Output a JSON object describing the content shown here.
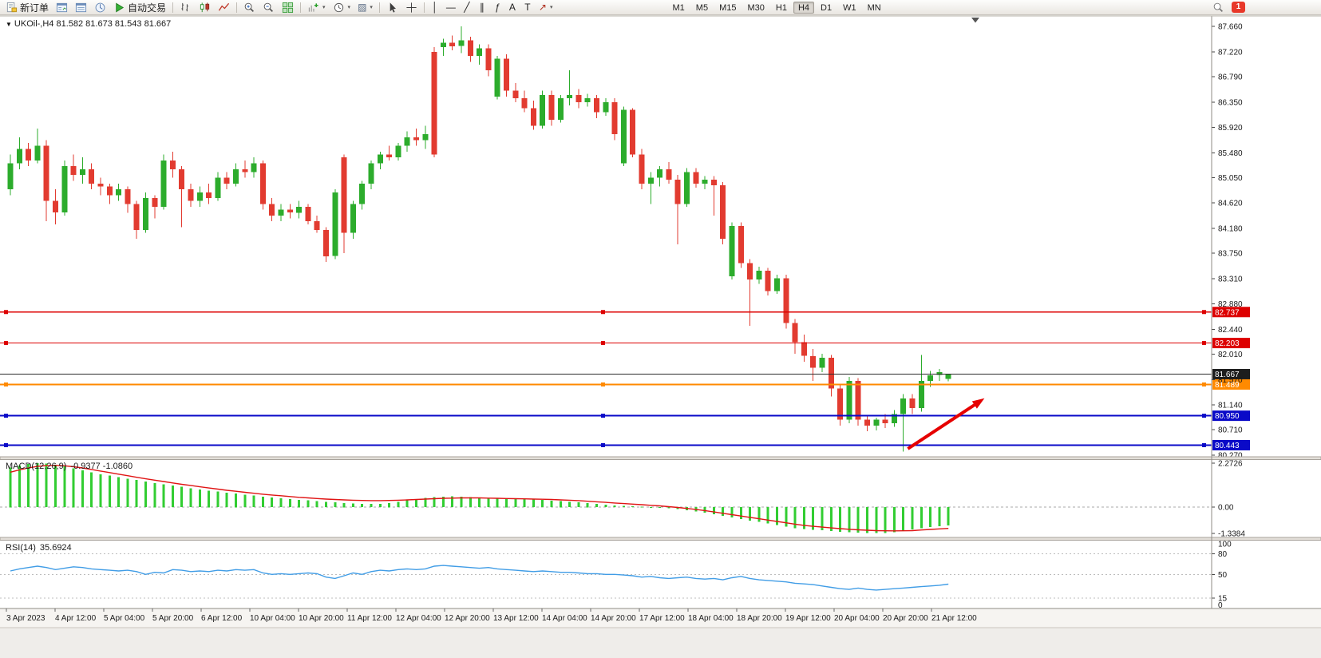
{
  "toolbar": {
    "new_order_label": "新订单",
    "auto_trading_label": "自动交易",
    "timeframes": [
      "M1",
      "M5",
      "M15",
      "M30",
      "H1",
      "H4",
      "D1",
      "W1",
      "MN"
    ],
    "active_timeframe": "H4",
    "notification_count": "1",
    "tool_glyphs": {
      "vline": "│",
      "hline": "—",
      "trendline": "╱",
      "channel": "∥",
      "fibonacci": "ƒ",
      "text": "A",
      "label": "T",
      "arrows": "↗",
      "template": "▨",
      "caret": "▾"
    }
  },
  "chart": {
    "collapse_arrow": "▼",
    "title": "UKOil-,H4 81.582 81.673 81.543 81.667"
  },
  "chart_data": [
    {
      "type": "candlestick",
      "symbol": "UKOil-",
      "period": "H4",
      "ohlc": {
        "open": 81.582,
        "high": 81.673,
        "low": 81.543,
        "close": 81.667
      },
      "ylim": [
        80.243,
        87.839
      ],
      "up_color": "#2cac2c",
      "down_color": "#e23b30",
      "y_ticks": [
        "87.660",
        "87.220",
        "86.790",
        "86.350",
        "85.920",
        "85.480",
        "85.050",
        "84.620",
        "84.180",
        "83.750",
        "83.310",
        "82.880",
        "82.440",
        "82.010",
        "81.570",
        "81.140",
        "80.710",
        "80.270"
      ],
      "x_labels": [
        "3 Apr 2023",
        "4 Apr 12:00",
        "5 Apr 04:00",
        "5 Apr 20:00",
        "6 Apr 12:00",
        "10 Apr 04:00",
        "10 Apr 20:00",
        "11 Apr 12:00",
        "12 Apr 04:00",
        "12 Apr 20:00",
        "13 Apr 12:00",
        "14 Apr 04:00",
        "14 Apr 20:00",
        "17 Apr 12:00",
        "18 Apr 04:00",
        "18 Apr 20:00",
        "19 Apr 12:00",
        "20 Apr 04:00",
        "20 Apr 20:00",
        "21 Apr 12:00"
      ],
      "hlines": [
        {
          "value": 82.737,
          "label": "82.737",
          "color": "#dd0000",
          "width": 1.1
        },
        {
          "value": 82.203,
          "label": "82.203",
          "color": "#dd0000",
          "width": 1.1
        },
        {
          "value": 81.667,
          "label": "81.667",
          "color": "#2b2b2b",
          "width": 1,
          "role": "current-price"
        },
        {
          "value": 81.489,
          "label": "81.489",
          "color": "#ff8a00",
          "width": 1.8
        },
        {
          "value": 80.95,
          "label": "80.950",
          "color": "#0a0ac8",
          "width": 1.8
        },
        {
          "value": 80.443,
          "label": "80.443",
          "color": "#0a0ac8",
          "width": 1.8
        }
      ],
      "arrow": {
        "from_bar": 99.5,
        "from_price": 80.38,
        "to_bar": 108,
        "to_price": 81.25,
        "color": "#e60000"
      },
      "candles": [
        [
          84.85,
          85.45,
          84.75,
          85.3
        ],
        [
          85.3,
          85.75,
          85.2,
          85.55
        ],
        [
          85.55,
          85.65,
          85.25,
          85.35
        ],
        [
          85.35,
          85.9,
          85.3,
          85.6
        ],
        [
          85.6,
          85.7,
          84.3,
          84.65
        ],
        [
          84.65,
          84.85,
          84.25,
          84.45
        ],
        [
          84.45,
          85.35,
          84.4,
          85.25
        ],
        [
          85.25,
          85.45,
          85.0,
          85.1
        ],
        [
          85.1,
          85.4,
          84.95,
          85.2
        ],
        [
          85.2,
          85.3,
          84.85,
          84.95
        ],
        [
          84.95,
          85.05,
          84.75,
          84.9
        ],
        [
          84.9,
          84.95,
          84.6,
          84.75
        ],
        [
          84.75,
          84.95,
          84.65,
          84.85
        ],
        [
          84.85,
          84.9,
          84.45,
          84.6
        ],
        [
          84.6,
          84.65,
          84.0,
          84.15
        ],
        [
          84.15,
          84.8,
          84.1,
          84.7
        ],
        [
          84.7,
          84.75,
          84.35,
          84.55
        ],
        [
          84.55,
          85.45,
          84.5,
          85.35
        ],
        [
          85.35,
          85.5,
          85.05,
          85.2
        ],
        [
          85.2,
          85.25,
          84.2,
          84.85
        ],
        [
          84.85,
          84.95,
          84.55,
          84.65
        ],
        [
          84.65,
          84.9,
          84.55,
          84.8
        ],
        [
          84.8,
          84.95,
          84.6,
          84.7
        ],
        [
          84.7,
          85.15,
          84.65,
          85.05
        ],
        [
          85.05,
          85.15,
          84.85,
          84.95
        ],
        [
          84.95,
          85.3,
          84.9,
          85.2
        ],
        [
          85.2,
          85.35,
          85.05,
          85.15
        ],
        [
          85.15,
          85.4,
          85.05,
          85.3
        ],
        [
          85.3,
          85.35,
          84.5,
          84.6
        ],
        [
          84.6,
          84.7,
          84.3,
          84.4
        ],
        [
          84.4,
          84.6,
          84.3,
          84.5
        ],
        [
          84.5,
          84.6,
          84.35,
          84.45
        ],
        [
          84.45,
          84.65,
          84.35,
          84.55
        ],
        [
          84.55,
          84.6,
          84.25,
          84.3
        ],
        [
          84.3,
          84.4,
          84.1,
          84.15
        ],
        [
          84.15,
          84.2,
          83.6,
          83.7
        ],
        [
          83.7,
          84.85,
          83.65,
          84.8
        ],
        [
          85.4,
          85.45,
          83.75,
          84.1
        ],
        [
          84.1,
          84.65,
          84.0,
          84.6
        ],
        [
          84.6,
          85.0,
          84.5,
          84.95
        ],
        [
          84.95,
          85.35,
          84.85,
          85.3
        ],
        [
          85.3,
          85.5,
          85.2,
          85.45
        ],
        [
          85.45,
          85.6,
          85.35,
          85.4
        ],
        [
          85.4,
          85.65,
          85.35,
          85.6
        ],
        [
          85.6,
          85.85,
          85.5,
          85.75
        ],
        [
          85.75,
          85.9,
          85.6,
          85.7
        ],
        [
          85.7,
          85.95,
          85.55,
          85.8
        ],
        [
          87.22,
          87.3,
          85.4,
          85.45
        ],
        [
          87.3,
          87.45,
          87.15,
          87.38
        ],
        [
          87.38,
          87.5,
          87.25,
          87.32
        ],
        [
          87.32,
          87.66,
          87.2,
          87.42
        ],
        [
          87.42,
          87.48,
          87.05,
          87.15
        ],
        [
          87.15,
          87.35,
          87.0,
          87.28
        ],
        [
          87.28,
          87.35,
          86.8,
          86.9
        ],
        [
          86.45,
          87.15,
          86.4,
          87.1
        ],
        [
          87.1,
          87.18,
          86.45,
          86.55
        ],
        [
          86.55,
          86.68,
          86.35,
          86.42
        ],
        [
          86.42,
          86.55,
          86.18,
          86.25
        ],
        [
          86.25,
          86.38,
          85.88,
          85.95
        ],
        [
          85.95,
          86.55,
          85.9,
          86.48
        ],
        [
          86.48,
          86.55,
          85.95,
          86.05
        ],
        [
          86.05,
          86.48,
          86.0,
          86.42
        ],
        [
          86.42,
          86.9,
          86.3,
          86.48
        ],
        [
          86.48,
          86.58,
          86.25,
          86.35
        ],
        [
          86.35,
          86.5,
          86.28,
          86.42
        ],
        [
          86.42,
          86.48,
          86.08,
          86.18
        ],
        [
          86.18,
          86.42,
          86.12,
          86.35
        ],
        [
          86.35,
          86.42,
          85.7,
          85.8
        ],
        [
          85.3,
          86.28,
          85.25,
          86.22
        ],
        [
          86.22,
          86.25,
          85.4,
          85.45
        ],
        [
          85.45,
          85.55,
          84.85,
          84.95
        ],
        [
          84.95,
          85.15,
          84.6,
          85.05
        ],
        [
          85.05,
          85.25,
          84.9,
          85.2
        ],
        [
          85.2,
          85.32,
          84.95,
          85.02
        ],
        [
          85.02,
          85.1,
          83.9,
          84.6
        ],
        [
          84.6,
          85.22,
          84.55,
          85.15
        ],
        [
          85.15,
          85.22,
          84.88,
          84.95
        ],
        [
          84.95,
          85.08,
          84.85,
          85.02
        ],
        [
          85.02,
          85.08,
          84.4,
          84.92
        ],
        [
          84.92,
          84.98,
          83.9,
          84.0
        ],
        [
          83.35,
          84.28,
          83.3,
          84.22
        ],
        [
          84.22,
          84.28,
          83.5,
          83.58
        ],
        [
          83.58,
          83.65,
          82.5,
          83.3
        ],
        [
          83.3,
          83.52,
          83.22,
          83.45
        ],
        [
          83.45,
          83.5,
          83.02,
          83.1
        ],
        [
          83.1,
          83.38,
          83.05,
          83.32
        ],
        [
          83.32,
          83.38,
          82.45,
          82.55
        ],
        [
          82.55,
          82.62,
          82.02,
          82.22
        ],
        [
          82.22,
          82.35,
          81.88,
          81.98
        ],
        [
          81.98,
          82.1,
          81.55,
          81.78
        ],
        [
          81.78,
          82.02,
          81.7,
          81.95
        ],
        [
          81.95,
          82.0,
          81.28,
          81.42
        ],
        [
          81.42,
          81.48,
          80.78,
          80.88
        ],
        [
          80.88,
          81.62,
          80.82,
          81.55
        ],
        [
          81.55,
          81.6,
          80.78,
          80.88
        ],
        [
          80.88,
          80.95,
          80.68,
          80.78
        ],
        [
          80.78,
          80.92,
          80.7,
          80.88
        ],
        [
          80.88,
          80.98,
          80.74,
          80.82
        ],
        [
          80.82,
          81.05,
          80.76,
          80.98
        ],
        [
          80.98,
          81.32,
          80.33,
          81.25
        ],
        [
          81.25,
          81.32,
          80.98,
          81.08
        ],
        [
          81.08,
          82.0,
          81.02,
          81.55
        ],
        [
          81.55,
          81.72,
          81.45,
          81.65
        ],
        [
          81.65,
          81.76,
          81.55,
          81.7
        ],
        [
          81.582,
          81.673,
          81.543,
          81.667
        ]
      ]
    },
    {
      "type": "bar",
      "name": "MACD(12,26,9)",
      "values_text": "-0.9377 -1.0860",
      "ylim": [
        -1.55,
        2.45
      ],
      "axis_labels": [
        "2.2726",
        "0.00",
        "-1.3384"
      ],
      "axis_values": [
        2.2726,
        0,
        -1.3384
      ],
      "histogram_color": "#32CD32",
      "signal_color": "#e01414",
      "histogram": [
        2.05,
        2.15,
        2.22,
        2.27,
        2.25,
        2.18,
        2.1,
        2.0,
        1.9,
        1.8,
        1.7,
        1.62,
        1.55,
        1.47,
        1.4,
        1.32,
        1.25,
        1.18,
        1.12,
        1.05,
        0.98,
        0.92,
        0.86,
        0.8,
        0.75,
        0.7,
        0.65,
        0.6,
        0.55,
        0.5,
        0.46,
        0.42,
        0.38,
        0.35,
        0.32,
        0.28,
        0.25,
        0.22,
        0.2,
        0.18,
        0.17,
        0.18,
        0.22,
        0.28,
        0.35,
        0.42,
        0.48,
        0.52,
        0.55,
        0.56,
        0.55,
        0.53,
        0.51,
        0.49,
        0.47,
        0.45,
        0.43,
        0.41,
        0.39,
        0.37,
        0.34,
        0.31,
        0.28,
        0.25,
        0.22,
        0.18,
        0.14,
        0.1,
        0.07,
        0.04,
        0.02,
        0.0,
        -0.03,
        -0.06,
        -0.1,
        -0.15,
        -0.21,
        -0.28,
        -0.36,
        -0.44,
        -0.52,
        -0.6,
        -0.68,
        -0.76,
        -0.84,
        -0.92,
        -1.0,
        -1.07,
        -1.13,
        -1.16,
        -1.18,
        -1.22,
        -1.26,
        -1.29,
        -1.31,
        -1.33,
        -1.334,
        -1.32,
        -1.28,
        -1.22,
        -1.15,
        -1.08,
        -1.02,
        -0.97,
        -0.9377
      ],
      "signal": [
        1.8,
        1.92,
        2.02,
        2.1,
        2.14,
        2.15,
        2.13,
        2.08,
        2.02,
        1.94,
        1.86,
        1.78,
        1.7,
        1.62,
        1.54,
        1.46,
        1.39,
        1.32,
        1.25,
        1.18,
        1.12,
        1.05,
        0.99,
        0.93,
        0.87,
        0.82,
        0.77,
        0.72,
        0.67,
        0.63,
        0.59,
        0.55,
        0.51,
        0.48,
        0.45,
        0.42,
        0.4,
        0.38,
        0.36,
        0.35,
        0.34,
        0.34,
        0.35,
        0.36,
        0.38,
        0.4,
        0.42,
        0.44,
        0.46,
        0.47,
        0.48,
        0.48,
        0.48,
        0.47,
        0.46,
        0.45,
        0.44,
        0.43,
        0.42,
        0.41,
        0.4,
        0.38,
        0.36,
        0.34,
        0.31,
        0.28,
        0.25,
        0.22,
        0.19,
        0.16,
        0.13,
        0.1,
        0.07,
        0.03,
        -0.01,
        -0.06,
        -0.11,
        -0.17,
        -0.24,
        -0.31,
        -0.38,
        -0.45,
        -0.52,
        -0.59,
        -0.66,
        -0.73,
        -0.8,
        -0.87,
        -0.93,
        -0.98,
        -1.02,
        -1.06,
        -1.1,
        -1.13,
        -1.16,
        -1.18,
        -1.2,
        -1.21,
        -1.215,
        -1.21,
        -1.2,
        -1.17,
        -1.14,
        -1.11,
        -1.086
      ]
    },
    {
      "type": "line",
      "name": "RSI(14)",
      "value_text": "35.6924",
      "ylim": [
        0,
        100
      ],
      "levels": [
        80,
        50,
        15
      ],
      "axis_labels": [
        "100",
        "80",
        "50",
        "15",
        "0"
      ],
      "axis_values": [
        100,
        80,
        50,
        15,
        0
      ],
      "line_color": "#419de6",
      "values": [
        55,
        58,
        60,
        62,
        60,
        57,
        59,
        61,
        60,
        58,
        57,
        56,
        55,
        56,
        54,
        50,
        53,
        52,
        57,
        56,
        54,
        55,
        54,
        56,
        55,
        57,
        56,
        57,
        52,
        50,
        51,
        50,
        51,
        52,
        51,
        46,
        44,
        48,
        52,
        50,
        54,
        56,
        55,
        57,
        58,
        57,
        58,
        62,
        63,
        62,
        61,
        60,
        59,
        60,
        58,
        57,
        56,
        55,
        54,
        55,
        54,
        53,
        53,
        52,
        51,
        51,
        50,
        50,
        49,
        48,
        46,
        47,
        45,
        44,
        45,
        46,
        44,
        43,
        44,
        42,
        45,
        47,
        44,
        42,
        41,
        40,
        39,
        37,
        36,
        35,
        33,
        31,
        29,
        28,
        30,
        28,
        27,
        28,
        29,
        30,
        31,
        32,
        33,
        34,
        35.69
      ]
    }
  ]
}
